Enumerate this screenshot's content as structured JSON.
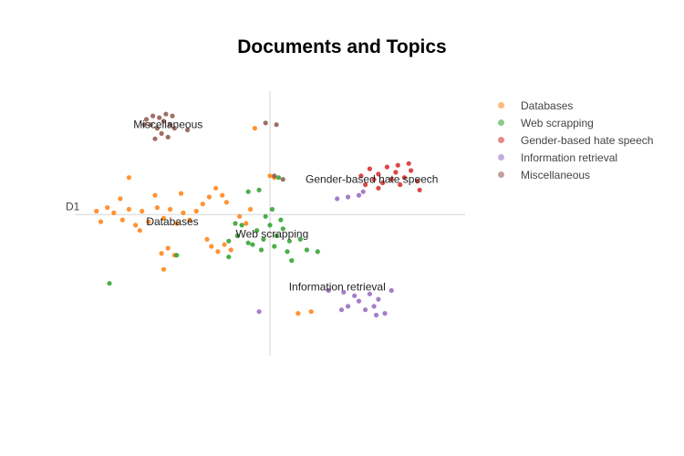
{
  "colors": {
    "Databases": "#ff7f0e",
    "Web scrapping": "#2ca02c",
    "Gender-based hate speech": "#d62728",
    "Information retrieval": "#9467bd",
    "Miscellaneous": "#8c564b"
  },
  "chart_data": {
    "type": "scatter",
    "title": "Documents and Topics",
    "xlabel": "D1",
    "ylabel": "",
    "grid": false,
    "legend_position": "right",
    "xlim": [
      -9,
      9
    ],
    "ylim": [
      -8,
      7
    ],
    "clusters": [
      {
        "name": "Databases",
        "label_x": -4.5,
        "label_y": -0.6,
        "points": [
          [
            -8,
            0.2
          ],
          [
            -7.5,
            0.4
          ],
          [
            -7.2,
            0.1
          ],
          [
            -6.8,
            -0.3
          ],
          [
            -6.5,
            0.3
          ],
          [
            -6.2,
            -0.6
          ],
          [
            -5.9,
            0.2
          ],
          [
            -5.6,
            -0.4
          ],
          [
            -5.2,
            0.4
          ],
          [
            -4.9,
            -0.2
          ],
          [
            -4.6,
            0.3
          ],
          [
            -4.3,
            -0.5
          ],
          [
            -4,
            0.1
          ],
          [
            -3.7,
            -0.3
          ],
          [
            -3.4,
            0.2
          ],
          [
            -3.1,
            0.6
          ],
          [
            -2.8,
            1
          ],
          [
            -2.5,
            1.5
          ],
          [
            -2.2,
            1.1
          ],
          [
            -2,
            0.7
          ],
          [
            -2.7,
            -1.8
          ],
          [
            -2.4,
            -2.1
          ],
          [
            -2.1,
            -1.7
          ],
          [
            -1.8,
            -2
          ],
          [
            -5,
            -2.2
          ],
          [
            -4.7,
            -1.9
          ],
          [
            -4.4,
            -2.3
          ],
          [
            -1.4,
            -0.1
          ],
          [
            -0.9,
            0.3
          ],
          [
            -1.1,
            -0.5
          ],
          [
            -6,
            -0.9
          ],
          [
            -6.9,
            0.9
          ],
          [
            -7.8,
            -0.4
          ],
          [
            -5.3,
            1.1
          ],
          [
            -4.1,
            1.2
          ],
          [
            0,
            2.2
          ],
          [
            0.2,
            2.1
          ],
          [
            -0.7,
            4.9
          ],
          [
            -6.5,
            2.1
          ],
          [
            -4.9,
            -3.1
          ],
          [
            -2.9,
            -1.4
          ],
          [
            1.3,
            -5.6
          ],
          [
            1.9,
            -5.5
          ]
        ]
      },
      {
        "name": "Web scrapping",
        "label_x": 0.1,
        "label_y": -1.3,
        "points": [
          [
            -1.5,
            -1.2
          ],
          [
            -1,
            -1.6
          ],
          [
            -0.6,
            -0.9
          ],
          [
            -0.3,
            -1.4
          ],
          [
            0,
            -0.6
          ],
          [
            0.3,
            -1.2
          ],
          [
            0.6,
            -0.8
          ],
          [
            0.9,
            -1.5
          ],
          [
            0.2,
            -1.8
          ],
          [
            -0.4,
            -2
          ],
          [
            -0.8,
            -1.7
          ],
          [
            0.5,
            -0.3
          ],
          [
            -0.2,
            -0.1
          ],
          [
            0.8,
            -2.1
          ],
          [
            -1.3,
            -0.6
          ],
          [
            1.4,
            -1.4
          ],
          [
            1.7,
            -2
          ],
          [
            2.2,
            -2.1
          ],
          [
            -1.9,
            -1.5
          ],
          [
            0.1,
            0.3
          ],
          [
            -1,
            1.3
          ],
          [
            -0.5,
            1.4
          ],
          [
            0.4,
            2.1
          ],
          [
            -1.6,
            -0.5
          ],
          [
            -1.9,
            -2.4
          ],
          [
            1,
            -2.6
          ],
          [
            -7.4,
            -3.9
          ],
          [
            -4.3,
            -2.3
          ]
        ]
      },
      {
        "name": "Gender-based hate speech",
        "label_x": 4.7,
        "label_y": 1.8,
        "points": [
          [
            4.2,
            2.2
          ],
          [
            4.6,
            2.6
          ],
          [
            5,
            2.3
          ],
          [
            5.4,
            2.7
          ],
          [
            5.8,
            2.4
          ],
          [
            6.2,
            2.1
          ],
          [
            6.5,
            2.5
          ],
          [
            6.8,
            1.9
          ],
          [
            5.2,
            1.8
          ],
          [
            5.6,
            2
          ],
          [
            6,
            1.7
          ],
          [
            4.8,
            2
          ],
          [
            6.4,
            2.9
          ],
          [
            5.9,
            2.8
          ],
          [
            6.9,
            1.4
          ],
          [
            4.4,
            1.7
          ],
          [
            5,
            1.5
          ]
        ]
      },
      {
        "name": "Information retrieval",
        "label_x": 3.1,
        "label_y": -4.3,
        "points": [
          [
            2.7,
            -4.3
          ],
          [
            3.4,
            -4.4
          ],
          [
            3.9,
            -4.6
          ],
          [
            4.1,
            -4.9
          ],
          [
            4.4,
            -5.4
          ],
          [
            4.8,
            -5.2
          ],
          [
            5,
            -4.8
          ],
          [
            5.3,
            -5.6
          ],
          [
            4.6,
            -4.5
          ],
          [
            3.6,
            -5.2
          ],
          [
            3.3,
            -5.4
          ],
          [
            4.9,
            -5.7
          ],
          [
            5.6,
            -4.3
          ],
          [
            -0.5,
            -5.5
          ],
          [
            4.1,
            1.1
          ],
          [
            3.6,
            1
          ],
          [
            3.1,
            0.9
          ],
          [
            4.3,
            1.3
          ]
        ]
      },
      {
        "name": "Miscellaneous",
        "label_x": -4.7,
        "label_y": 4.9,
        "points": [
          [
            -5.7,
            5.4
          ],
          [
            -5.4,
            5.6
          ],
          [
            -5.1,
            5.5
          ],
          [
            -4.8,
            5.7
          ],
          [
            -5.5,
            5.1
          ],
          [
            -5.2,
            4.9
          ],
          [
            -4.9,
            5.3
          ],
          [
            -4.6,
            5.1
          ],
          [
            -5,
            4.6
          ],
          [
            -4.7,
            4.4
          ],
          [
            -5.3,
            4.3
          ],
          [
            -4.4,
            4.9
          ],
          [
            -5.8,
            5.1
          ],
          [
            -4.5,
            5.6
          ],
          [
            -3.8,
            4.8
          ],
          [
            -0.2,
            5.2
          ],
          [
            0.3,
            5.1
          ],
          [
            0.2,
            2.2
          ],
          [
            0.6,
            2
          ]
        ]
      }
    ]
  }
}
